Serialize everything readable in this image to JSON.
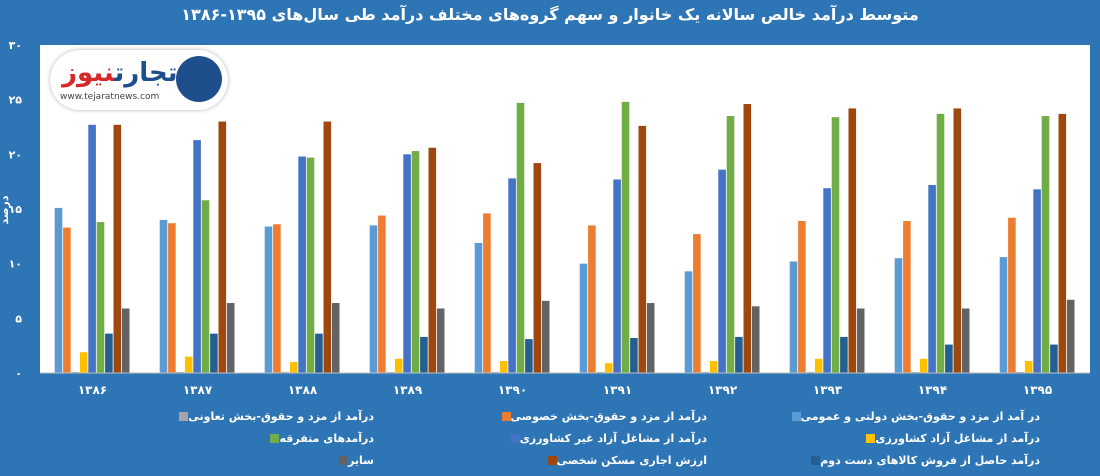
{
  "chart_data": {
    "type": "bar",
    "title": "متوسط درآمد خالص سالانه یک خانوار و سهم گروه‌های مختلف درآمد طی سال‌های ۱۳۹۵-۱۳۸۶",
    "ylabel": "درصد",
    "xlabel": "",
    "ylim": [
      0,
      30
    ],
    "yticks": [
      "۰",
      "۵",
      "۱۰",
      "۱۵",
      "۲۰",
      "۲۵",
      "۳۰"
    ],
    "categories": [
      "۱۳۸۶",
      "۱۳۸۷",
      "۱۳۸۸",
      "۱۳۸۹",
      "۱۳۹۰",
      "۱۳۹۱",
      "۱۳۹۲",
      "۱۳۹۳",
      "۱۳۹۴",
      "۱۳۹۵"
    ],
    "series": [
      {
        "name": "در آمد از مزد و حقوق-بخش دولتی و عمومی",
        "color": "#5b9bd5",
        "values": [
          15.1,
          14.0,
          13.4,
          13.5,
          11.9,
          10.0,
          9.3,
          10.2,
          10.5,
          10.6
        ]
      },
      {
        "name": "درآمد از مزد و حقوق-بخش خصوصی",
        "color": "#ed7d31",
        "values": [
          13.3,
          13.7,
          13.6,
          14.4,
          14.6,
          13.5,
          12.7,
          13.9,
          13.9,
          14.2
        ]
      },
      {
        "name": "درآمد از مزد و حقوق-بخش تعاونی",
        "color": "#a5a5a5",
        "values": [
          0.1,
          0.1,
          0.1,
          0.1,
          0.1,
          0.1,
          0.1,
          0.1,
          0.1,
          0.1
        ]
      },
      {
        "name": "درآمد از مشاغل آزاد کشاورزی",
        "color": "#ffc000",
        "values": [
          1.9,
          1.5,
          1.0,
          1.3,
          1.1,
          0.9,
          1.1,
          1.3,
          1.3,
          1.1
        ]
      },
      {
        "name": "درآمد از مشاغل آزاد غیر کشاورزی",
        "color": "#4472c4",
        "values": [
          22.7,
          21.3,
          19.8,
          20.0,
          17.8,
          17.7,
          18.6,
          16.9,
          17.2,
          16.8
        ]
      },
      {
        "name": "درآمدهای متفرقه",
        "color": "#70ad47",
        "values": [
          13.8,
          15.8,
          19.7,
          20.3,
          24.7,
          24.8,
          23.5,
          23.4,
          23.7,
          23.5
        ]
      },
      {
        "name": "درآمد حاصل از فروش کالاهای دست دوم",
        "color": "#255e91",
        "values": [
          3.6,
          3.6,
          3.6,
          3.3,
          3.1,
          3.2,
          3.3,
          3.3,
          2.6,
          2.6
        ]
      },
      {
        "name": "ارزش اجاری مسکن شخصی",
        "color": "#9e480e",
        "values": [
          22.7,
          23.0,
          23.0,
          20.6,
          19.2,
          22.6,
          24.6,
          24.2,
          24.2,
          23.7
        ]
      },
      {
        "name": "سایر",
        "color": "#636363",
        "values": [
          5.9,
          6.4,
          6.4,
          5.9,
          6.6,
          6.4,
          6.1,
          5.9,
          5.9,
          6.7
        ]
      }
    ],
    "legend_order": [
      [
        0,
        1,
        2
      ],
      [
        3,
        4,
        5
      ],
      [
        6,
        7,
        8
      ]
    ],
    "legend_position": "bottom",
    "grid": false
  },
  "logo": {
    "name": "تجارت نیوز",
    "url_text": "www.tejaratnews.com"
  }
}
